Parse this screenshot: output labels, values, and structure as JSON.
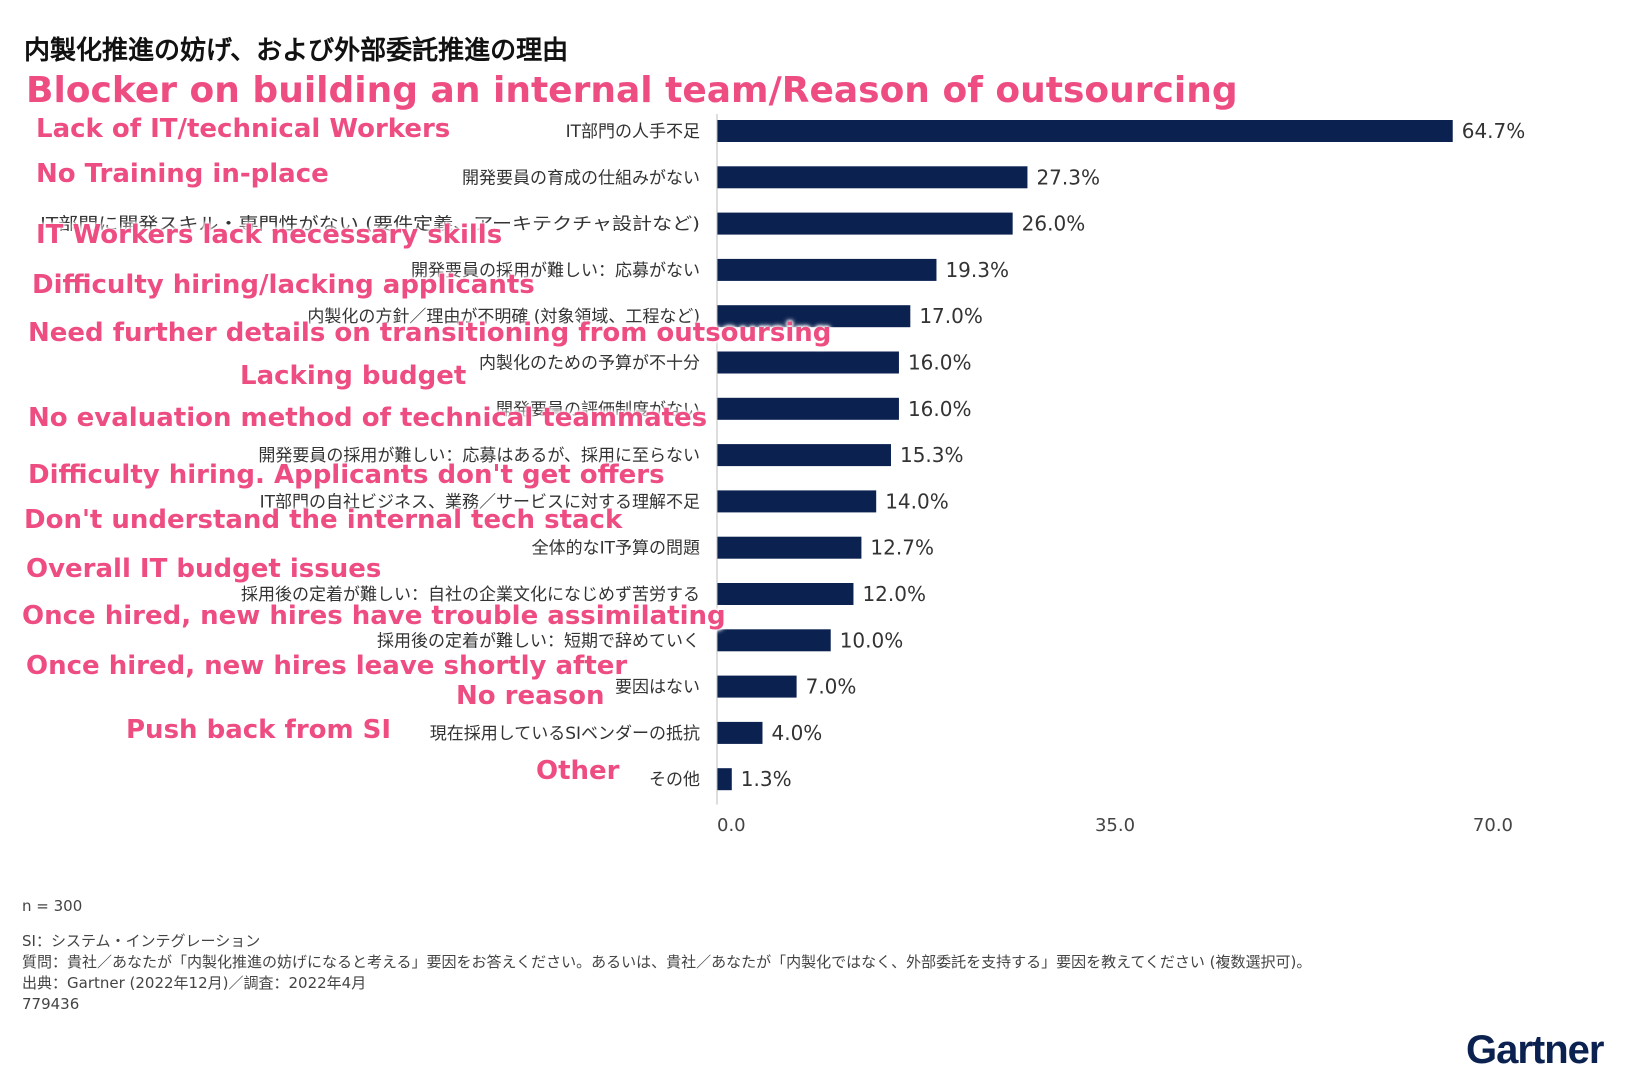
{
  "header": {
    "jp_title": "内製化推進の妨げ、および外部委託推進の理由",
    "en_title": "Blocker on building an internal team/Reason of outsourcing"
  },
  "chart_data": {
    "type": "bar",
    "orientation": "horizontal",
    "categories": [
      "IT部門の人手不足",
      "開発要員の育成の仕組みがない",
      "IT部門に開発スキル・専門性がない (要件定義、アーキテクチャ設計など)",
      "開発要員の採用が難しい：応募がない",
      "内製化の方針／理由が不明確 (対象領域、工程など)",
      "内製化のための予算が不十分",
      "開発要員の評価制度がない",
      "開発要員の採用が難しい：応募はあるが、採用に至らない",
      "IT部門の自社ビジネス、業務／サービスに対する理解不足",
      "全体的なIT予算の問題",
      "採用後の定着が難しい：自社の企業文化になじめず苦労する",
      "採用後の定着が難しい：短期で辞めていく",
      "要因はない",
      "現在採用しているSIベンダーの抵抗",
      "その他"
    ],
    "values": [
      64.7,
      27.3,
      26.0,
      19.3,
      17.0,
      16.0,
      16.0,
      15.3,
      14.0,
      12.7,
      12.0,
      10.0,
      7.0,
      4.0,
      1.3
    ],
    "value_labels": [
      "64.7%",
      "27.3%",
      "26.0%",
      "19.3%",
      "17.0%",
      "16.0%",
      "16.0%",
      "15.3%",
      "14.0%",
      "12.7%",
      "12.0%",
      "10.0%",
      "7.0%",
      "4.0%",
      "1.3%"
    ],
    "xlim": [
      0,
      70
    ],
    "xticks": [
      "0.0",
      "35.0",
      "70.0"
    ],
    "grid": false,
    "bar_color": "#0b2150"
  },
  "overlays": [
    "Lack of IT/technical Workers",
    "No Training in-place",
    "IT Workers lack necessary skills",
    "Difficulty hiring/lacking applicants",
    "Need further details on transitioning from outsoursing",
    "Lacking budget",
    "No evaluation method of technical teammates",
    "Difficulty hiring. Applicants don't get offers",
    "Don't understand the internal tech stack",
    "Overall IT budget issues",
    "Once hired, new hires have trouble assimilating",
    "Once hired, new hires leave shortly after",
    "No reason",
    "Push back from SI",
    "Other"
  ],
  "footer": {
    "n": "n = 300",
    "lines": [
      "SI：システム・インテグレーション",
      "質問：貴社／あなたが「内製化推進の妨げになると考える」要因をお答えください。あるいは、貴社／あなたが「内製化ではなく、外部委託を支持する」要因を教えてください (複数選択可)。",
      "出典：Gartner (2022年12月)／調査：2022年4月",
      "779436"
    ]
  },
  "brand": {
    "logo": "Gartner",
    "accent": "#ee4d82",
    "logo_color": "#0b2150"
  }
}
